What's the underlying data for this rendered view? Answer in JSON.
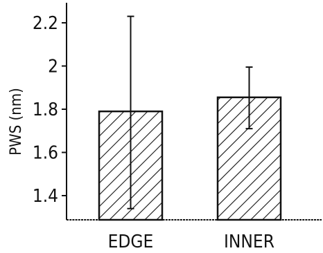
{
  "chart_data": {
    "type": "bar",
    "categories": [
      "EDGE",
      "INNER"
    ],
    "values": [
      1.79,
      1.855
    ],
    "error_bars": {
      "EDGE": {
        "low": 1.34,
        "high": 2.23
      },
      "INNER": {
        "low": 1.71,
        "high": 1.995
      }
    },
    "xlabel": "",
    "ylabel": "PWS (nm)",
    "ylim": [
      1.3,
      2.3
    ],
    "yticks": [
      1.4,
      1.6,
      1.8,
      2,
      2.2
    ],
    "ytick_labels": [
      "1.4",
      "1.6",
      "1.8",
      "2",
      "2.2"
    ],
    "bar_fill": "diagonal-hatch",
    "grid": false,
    "colors": {
      "ink": "#111111",
      "background": "#ffffff"
    }
  }
}
